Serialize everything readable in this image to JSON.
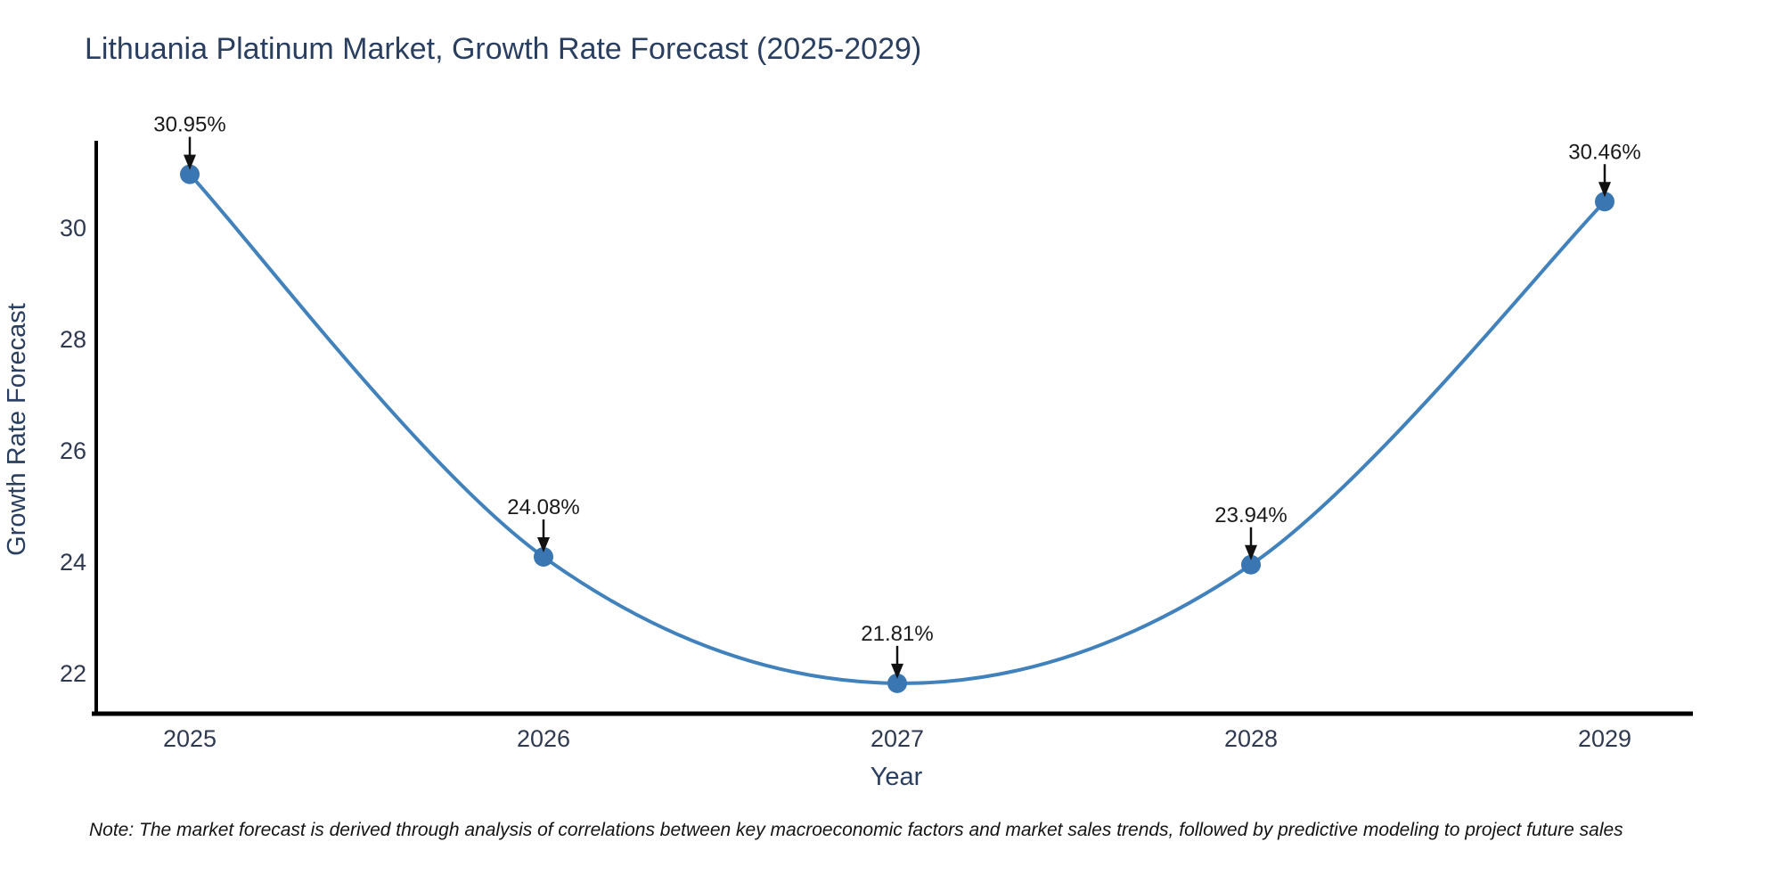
{
  "page": {
    "note": "Note: The market forecast is derived through analysis of correlations between key macroeconomic factors and market sales trends, followed by predictive modeling to project future sales"
  },
  "chart_data": {
    "type": "line",
    "title": "Lithuania Platinum Market, Growth Rate Forecast (2025-2029)",
    "xlabel": "Year",
    "ylabel": "Growth Rate Forecast",
    "categories": [
      "2025",
      "2026",
      "2027",
      "2028",
      "2029"
    ],
    "series": [
      {
        "name": "Growth Rate Forecast",
        "values": [
          30.95,
          24.08,
          21.81,
          23.94,
          30.46
        ]
      }
    ],
    "point_labels": [
      "30.95%",
      "24.08%",
      "21.81%",
      "23.94%",
      "30.46%"
    ],
    "yticks": [
      22,
      24,
      26,
      28,
      30
    ],
    "ylim": [
      21.23,
      31.52
    ],
    "grid": false,
    "legend_position": "none",
    "smooth_line": true,
    "annotations_with_arrows": true,
    "colors": {
      "line": "#4181bc",
      "marker": "#3a76b2",
      "axis": "#000000",
      "title_text": "#2a3f5f",
      "tick_text": "#2f3a52",
      "annotation": "#111111"
    }
  }
}
